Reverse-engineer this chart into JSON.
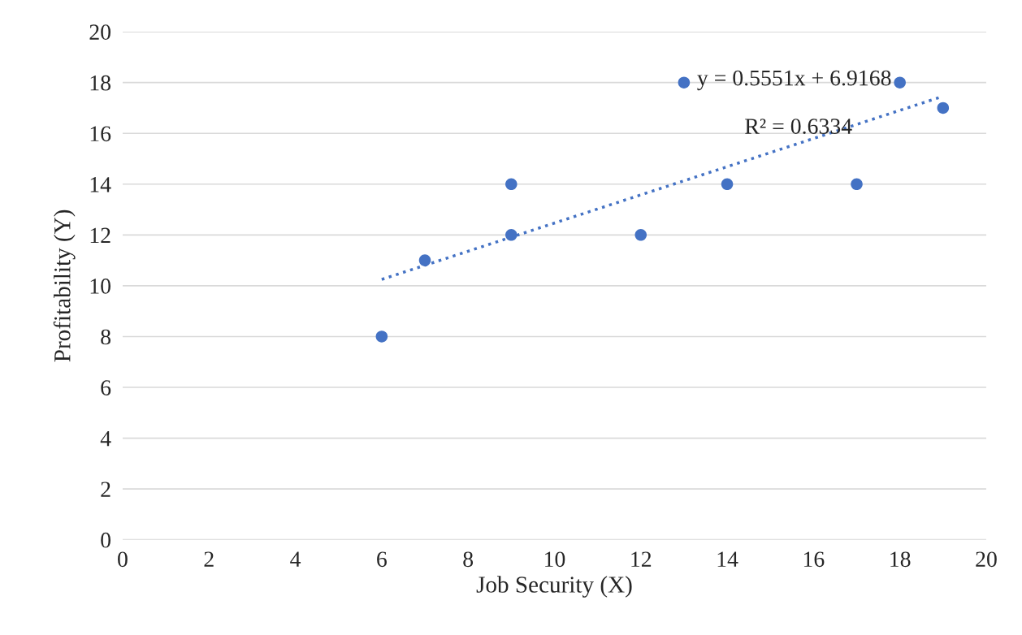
{
  "chart_data": {
    "type": "scatter",
    "xlabel": "Job Security (X)",
    "ylabel": "Profitability (Y)",
    "x": [
      6,
      7,
      9,
      9,
      12,
      13,
      14,
      17,
      18,
      19
    ],
    "series": [
      {
        "color": "#4472c4",
        "values": [
          8,
          11,
          14,
          12,
          12,
          18,
          14,
          14,
          18,
          17
        ],
        "marker": "circle"
      },
      {
        "type": "line",
        "color": "#4472c4",
        "x": [
          6,
          19
        ],
        "values": [
          10.25,
          17.46
        ],
        "line_style": "dotted"
      }
    ],
    "annotations": [
      "y = 0.5551x + 6.9168",
      "R² = 0.6334"
    ],
    "xlim": [
      0,
      20
    ],
    "xticks": [
      0,
      2,
      4,
      6,
      8,
      10,
      12,
      14,
      16,
      18,
      20
    ],
    "ylim": [
      0,
      20
    ],
    "yticks": [
      0,
      2,
      4,
      6,
      8,
      10,
      12,
      14,
      16,
      18,
      20
    ],
    "grid": "y",
    "legend": false
  }
}
